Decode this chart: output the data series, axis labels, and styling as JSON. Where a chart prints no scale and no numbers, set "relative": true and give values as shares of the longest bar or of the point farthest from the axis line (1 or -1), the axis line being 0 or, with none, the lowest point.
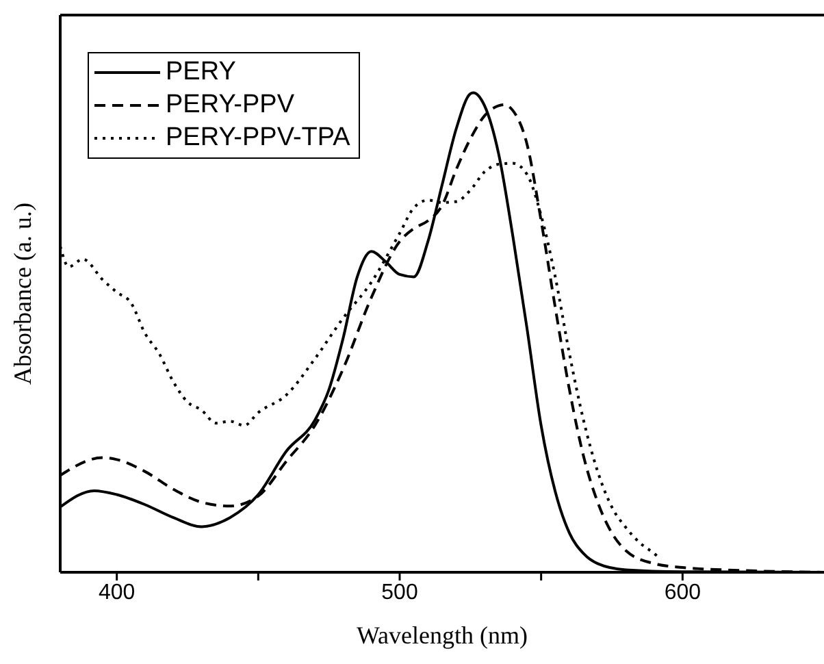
{
  "chart_data": {
    "type": "line",
    "xlabel": "Wavelength (nm)",
    "ylabel": "Absorbance (a. u.)",
    "relative": true,
    "xlim": [
      380,
      650
    ],
    "xticks": [
      400,
      {
        "value": 450,
        "label": null
      },
      500,
      {
        "value": 550,
        "label": null
      },
      600
    ],
    "legend": "top left",
    "marker": "none",
    "series": [
      {
        "name": "PERY",
        "color": "#000000",
        "line_style": "solid",
        "x": [
          380,
          392,
          400,
          410,
          420,
          430,
          440,
          450,
          460,
          470,
          475,
          480,
          485,
          490,
          495,
          500,
          505,
          510,
          515,
          520,
          525,
          526,
          530,
          535,
          540,
          545,
          550,
          555,
          560,
          565,
          570,
          580,
          600,
          650
        ],
        "values": [
          0.136,
          0.17,
          0.162,
          0.141,
          0.114,
          0.095,
          0.114,
          0.162,
          0.253,
          0.317,
          0.381,
          0.488,
          0.616,
          0.669,
          0.648,
          0.621,
          0.616,
          0.69,
          0.808,
          0.925,
          0.998,
          1,
          0.973,
          0.872,
          0.701,
          0.509,
          0.306,
          0.168,
          0.082,
          0.039,
          0.018,
          0.005,
          0.001,
          0
        ]
      },
      {
        "name": "PERY-PPV",
        "color": "#000000",
        "line_style": "dashed",
        "x": [
          380,
          395,
          400,
          410,
          420,
          430,
          440,
          450,
          460,
          470,
          480,
          490,
          500,
          505,
          510,
          515,
          520,
          525,
          530,
          535,
          537,
          540,
          545,
          550,
          555,
          560,
          565,
          570,
          575,
          580,
          590,
          600,
          620,
          650
        ],
        "values": [
          0.202,
          0.239,
          0.235,
          0.21,
          0.173,
          0.146,
          0.138,
          0.159,
          0.232,
          0.306,
          0.424,
          0.573,
          0.69,
          0.717,
          0.733,
          0.765,
          0.84,
          0.904,
          0.952,
          0.973,
          0.975,
          0.963,
          0.893,
          0.733,
          0.552,
          0.381,
          0.242,
          0.146,
          0.082,
          0.045,
          0.018,
          0.01,
          0.004,
          0
        ]
      },
      {
        "name": "PERY-PPV-TPA",
        "color": "#000000",
        "line_style": "dotted",
        "x": [
          380,
          383,
          388,
          395,
          400,
          405,
          410,
          415,
          420,
          425,
          430,
          435,
          440,
          445,
          450,
          460,
          470,
          480,
          490,
          500,
          505,
          510,
          515,
          520,
          525,
          530,
          535,
          540,
          545,
          550,
          555,
          560,
          565,
          570,
          575,
          580,
          585,
          590,
          592
        ],
        "values": [
          0.68,
          0.637,
          0.653,
          0.61,
          0.584,
          0.562,
          0.498,
          0.456,
          0.397,
          0.355,
          0.338,
          0.311,
          0.315,
          0.306,
          0.333,
          0.37,
          0.445,
          0.53,
          0.605,
          0.707,
          0.76,
          0.776,
          0.771,
          0.773,
          0.797,
          0.835,
          0.851,
          0.853,
          0.83,
          0.744,
          0.616,
          0.456,
          0.317,
          0.21,
          0.136,
          0.093,
          0.061,
          0.039,
          0.029
        ]
      }
    ]
  }
}
